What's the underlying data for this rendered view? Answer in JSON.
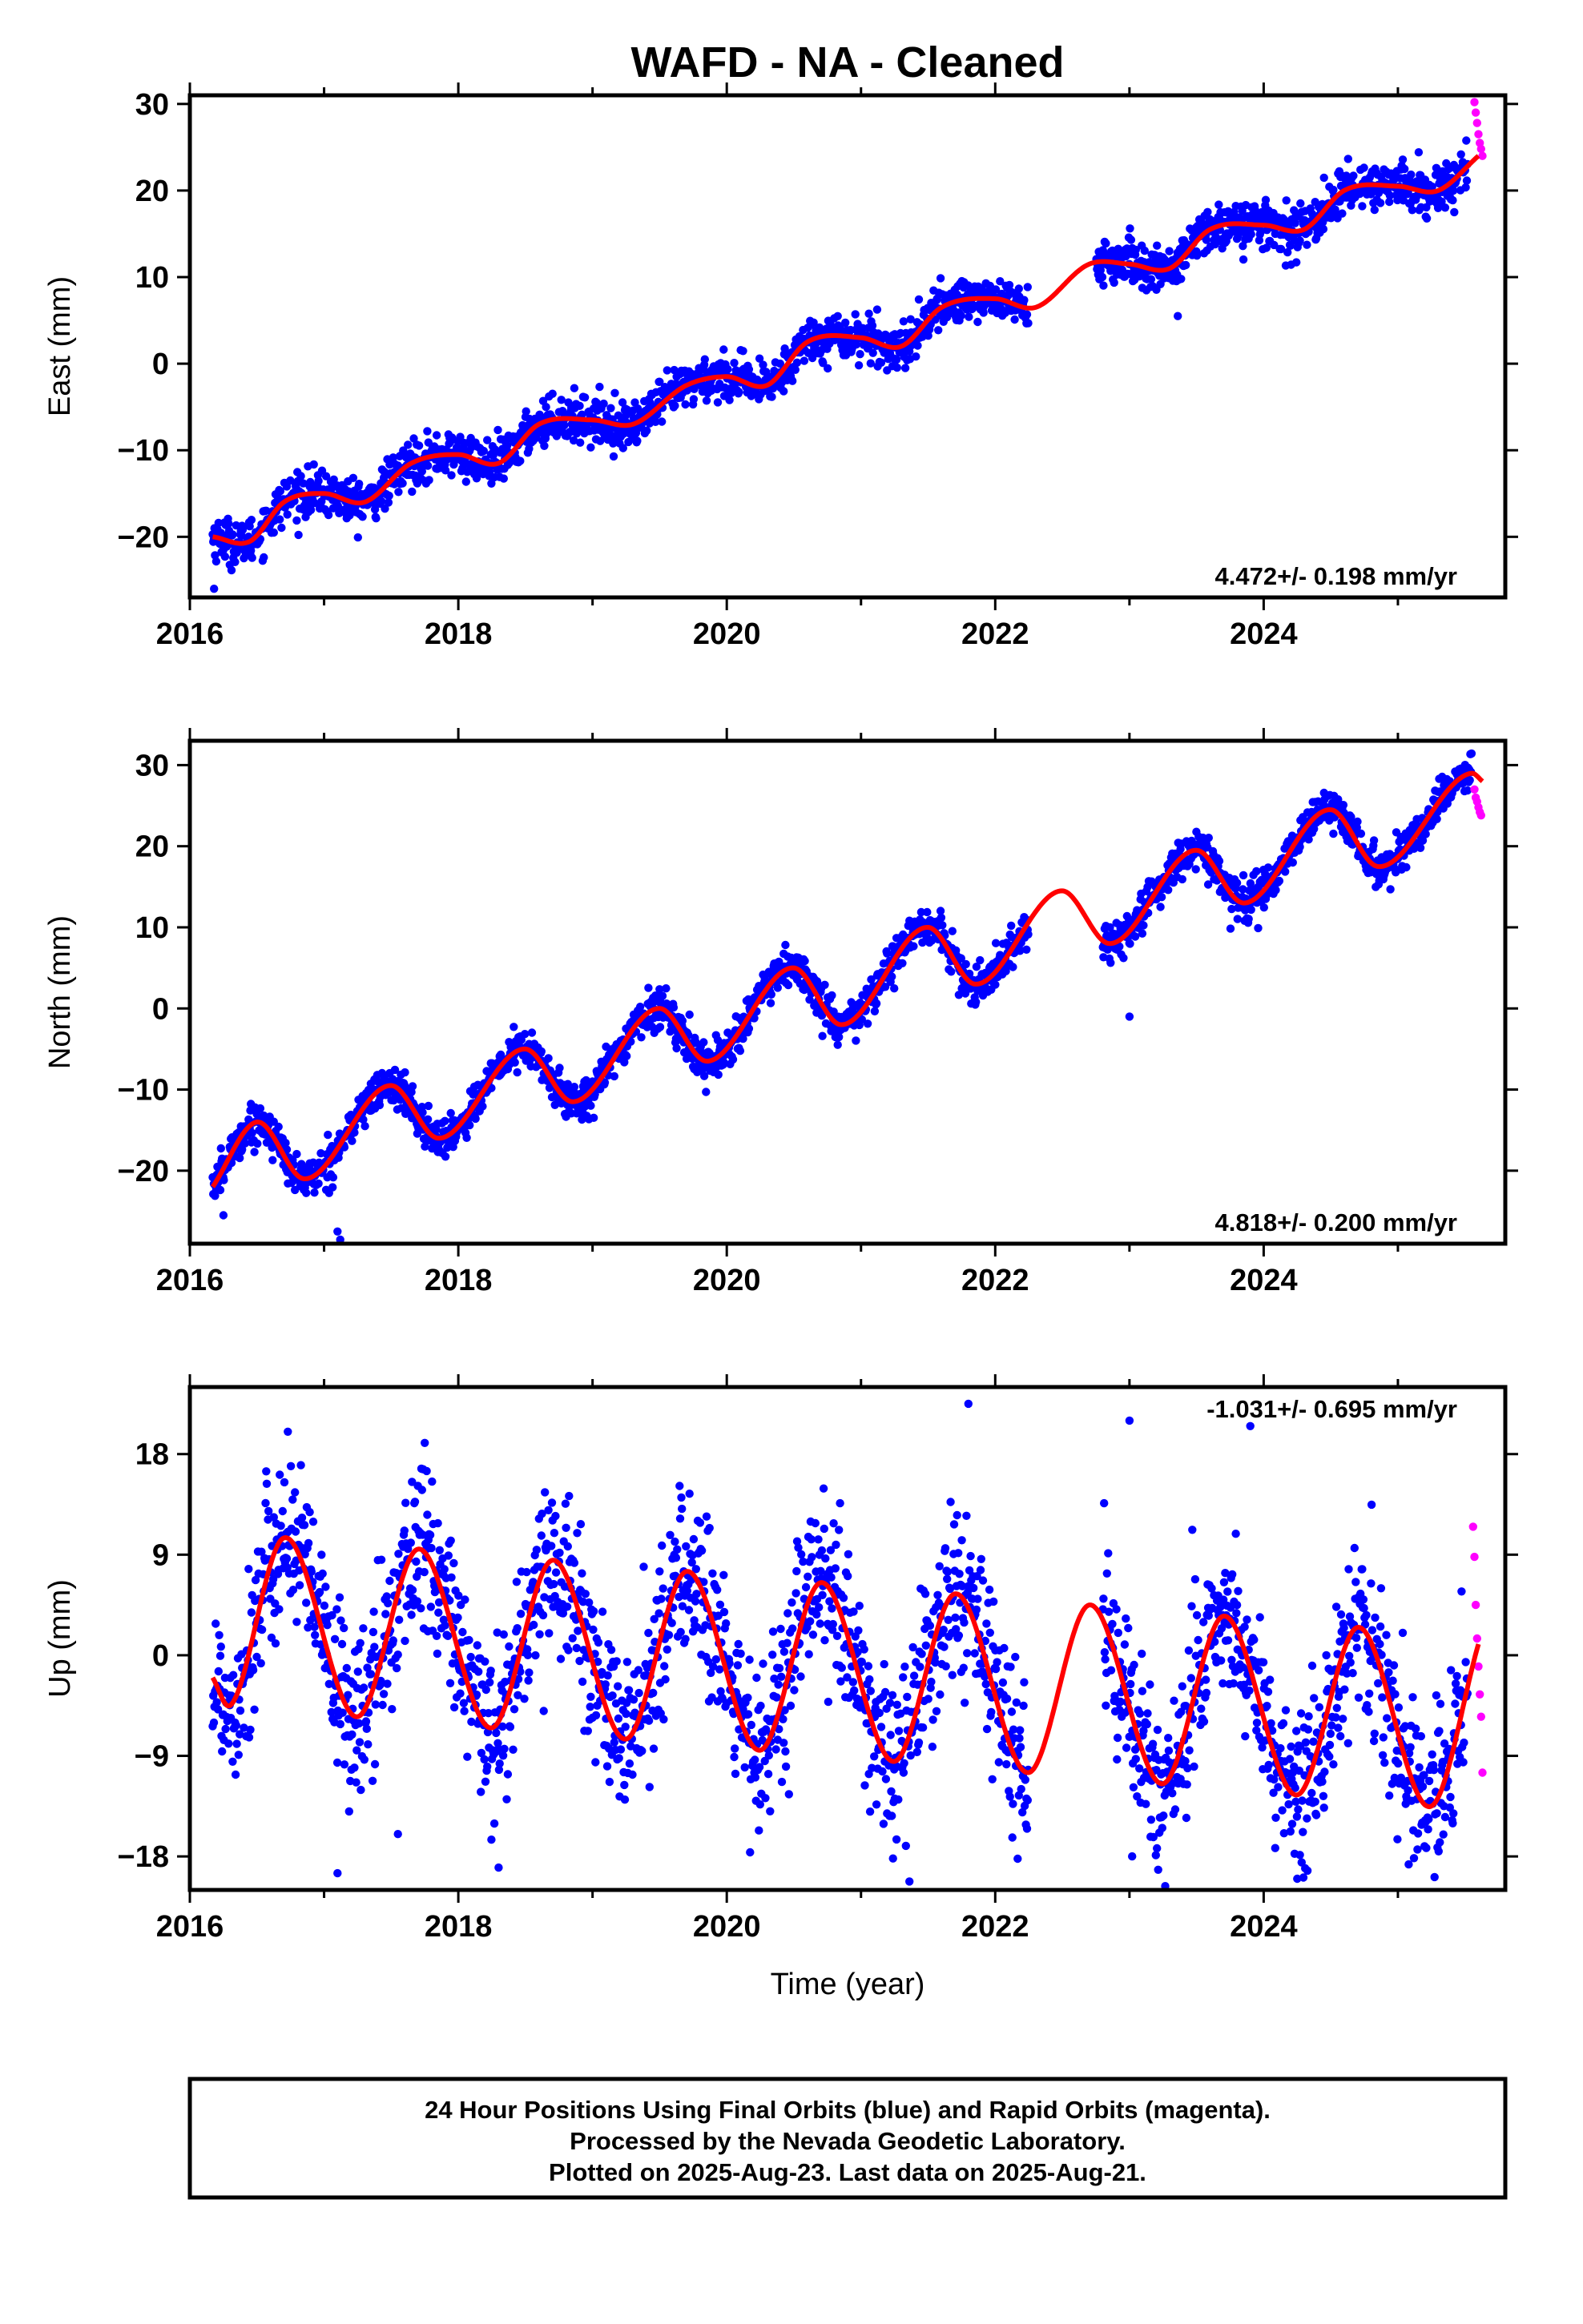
{
  "title": "WAFD  - NA - Cleaned",
  "colors": {
    "final_orbits": "#0000ff",
    "rapid_orbits": "#ff00ff",
    "model_fit": "#ff0000",
    "frame": "#000000"
  },
  "chart_data": [
    {
      "type": "scatter",
      "ylabel": "East (mm)",
      "xlabel": "",
      "rate_text": "4.472+/- 0.198 mm/yr",
      "xlim": [
        2016.0,
        2025.8
      ],
      "ylim": [
        -27,
        31
      ],
      "xticks": [
        2016,
        2018,
        2020,
        2022,
        2024
      ],
      "xtick_labels": [
        "2016",
        "2018",
        "2020",
        "2022",
        "2024"
      ],
      "yticks": [
        -20,
        -10,
        0,
        10,
        20,
        30
      ],
      "ytick_labels": [
        "−20",
        "−10",
        "0",
        "10",
        "20",
        "30"
      ],
      "fit_knots": {
        "x": [
          2016.17,
          2016.45,
          2016.7,
          2017.0,
          2017.3,
          2017.65,
          2018.0,
          2018.3,
          2018.6,
          2019.0,
          2019.3,
          2019.7,
          2020.0,
          2020.3,
          2020.6,
          2021.0,
          2021.3,
          2021.6,
          2022.0,
          2022.3,
          2022.7,
          2023.0,
          2023.3,
          2023.6,
          2024.0,
          2024.3,
          2024.6,
          2025.0,
          2025.3,
          2025.6
        ],
        "y": [
          -20.0,
          -20.5,
          -16.0,
          -15.0,
          -16.0,
          -11.5,
          -10.5,
          -11.5,
          -7.0,
          -6.5,
          -7.0,
          -2.5,
          -1.5,
          -2.5,
          2.5,
          3.0,
          2.0,
          6.5,
          7.5,
          6.5,
          11.5,
          11.5,
          11.0,
          15.5,
          16.0,
          15.5,
          20.0,
          20.5,
          20.0,
          24.0
        ]
      },
      "scatter": {
        "gaps": [
          [
            2022.25,
            2022.75
          ]
        ],
        "end": 2025.52,
        "noise": 1.3,
        "outliers": [
          [
            2016.18,
            -26.0
          ],
          [
            2023.36,
            5.5
          ],
          [
            2025.42,
            17.5
          ]
        ]
      },
      "rapid": {
        "x": [
          2025.57,
          2025.58,
          2025.59,
          2025.6,
          2025.61,
          2025.62,
          2025.63
        ],
        "y": [
          30.2,
          29.0,
          27.8,
          26.5,
          25.5,
          24.8,
          24.0
        ]
      }
    },
    {
      "type": "scatter",
      "ylabel": "North (mm)",
      "xlabel": "",
      "rate_text": "4.818+/- 0.200 mm/yr",
      "xlim": [
        2016.0,
        2025.8
      ],
      "ylim": [
        -29,
        33
      ],
      "xticks": [
        2016,
        2018,
        2020,
        2022,
        2024
      ],
      "xtick_labels": [
        "2016",
        "2018",
        "2020",
        "2022",
        "2024"
      ],
      "yticks": [
        -20,
        -10,
        0,
        10,
        20,
        30
      ],
      "ytick_labels": [
        "−20",
        "−10",
        "0",
        "10",
        "20",
        "30"
      ],
      "fit_knots": {
        "x": [
          2016.17,
          2016.5,
          2016.85,
          2017.5,
          2017.85,
          2018.5,
          2018.85,
          2019.5,
          2019.85,
          2020.5,
          2020.85,
          2021.5,
          2021.85,
          2022.5,
          2022.85,
          2023.5,
          2023.85,
          2024.5,
          2024.85,
          2025.55,
          2025.63
        ],
        "y": [
          -22.0,
          -14.0,
          -21.0,
          -9.5,
          -16.0,
          -5.0,
          -11.5,
          0.0,
          -6.5,
          5.0,
          -2.0,
          10.0,
          3.0,
          14.5,
          8.0,
          19.5,
          13.0,
          24.5,
          17.5,
          29.0,
          28.0
        ]
      },
      "scatter": {
        "gaps": [
          [
            2022.25,
            2022.8
          ]
        ],
        "end": 2025.55,
        "noise": 1.2,
        "outliers": [
          [
            2017.1,
            -27.5
          ],
          [
            2017.12,
            -28.5
          ],
          [
            2023.0,
            -1.0
          ],
          [
            2016.25,
            -25.5
          ]
        ]
      },
      "rapid": {
        "x": [
          2025.57,
          2025.58,
          2025.59,
          2025.6,
          2025.61,
          2025.62
        ],
        "y": [
          27.0,
          26.0,
          25.5,
          24.8,
          24.2,
          23.8
        ]
      }
    },
    {
      "type": "scatter",
      "ylabel": "Up (mm)",
      "xlabel": "Time (year)",
      "rate_text": "-1.031+/- 0.695 mm/yr",
      "xlim": [
        2016.0,
        2025.8
      ],
      "ylim": [
        -21,
        24
      ],
      "xticks": [
        2016,
        2018,
        2020,
        2022,
        2024
      ],
      "xtick_labels": [
        "2016",
        "2018",
        "2020",
        "2022",
        "2024"
      ],
      "yticks": [
        -18,
        -9,
        0,
        9,
        18
      ],
      "ytick_labels": [
        "−18",
        "−9",
        "0",
        "9",
        "18"
      ],
      "fit_knots": {
        "x": [
          2016.17,
          2016.3,
          2016.7,
          2017.25,
          2017.7,
          2018.25,
          2018.7,
          2019.25,
          2019.7,
          2020.25,
          2020.7,
          2021.25,
          2021.7,
          2022.25,
          2022.7,
          2023.25,
          2023.7,
          2024.25,
          2024.7,
          2025.25,
          2025.6
        ],
        "y": [
          -2.0,
          -4.5,
          10.5,
          -5.5,
          9.5,
          -6.5,
          8.5,
          -7.5,
          7.5,
          -8.5,
          6.5,
          -9.5,
          5.5,
          -10.5,
          4.5,
          -11.5,
          3.5,
          -12.5,
          2.5,
          -13.5,
          1.0
        ]
      },
      "scatter": {
        "gaps": [
          [
            2022.25,
            2022.8
          ]
        ],
        "end": 2025.52,
        "noise": 3.8,
        "outliers": [
          [
            2017.1,
            -19.5
          ],
          [
            2017.55,
            -16.0
          ],
          [
            2018.3,
            -19.0
          ],
          [
            2021.8,
            22.5
          ],
          [
            2023.0,
            21.0
          ],
          [
            2023.9,
            20.5
          ],
          [
            2023.02,
            -18.0
          ],
          [
            2024.25,
            -20.0
          ],
          [
            2016.73,
            20.0
          ],
          [
            2017.75,
            19.0
          ]
        ]
      },
      "rapid": {
        "x": [
          2025.56,
          2025.57,
          2025.58,
          2025.59,
          2025.6,
          2025.61,
          2025.62,
          2025.63
        ],
        "y": [
          11.5,
          8.8,
          4.5,
          1.5,
          -1.0,
          -3.5,
          -5.5,
          -10.5
        ]
      }
    }
  ],
  "footer": {
    "line1": "24 Hour Positions Using Final Orbits (blue) and Rapid Orbits (magenta).",
    "line2": "Processed by the Nevada Geodetic Laboratory.",
    "line3": "Plotted on 2025-Aug-23. Last data on 2025-Aug-21."
  }
}
